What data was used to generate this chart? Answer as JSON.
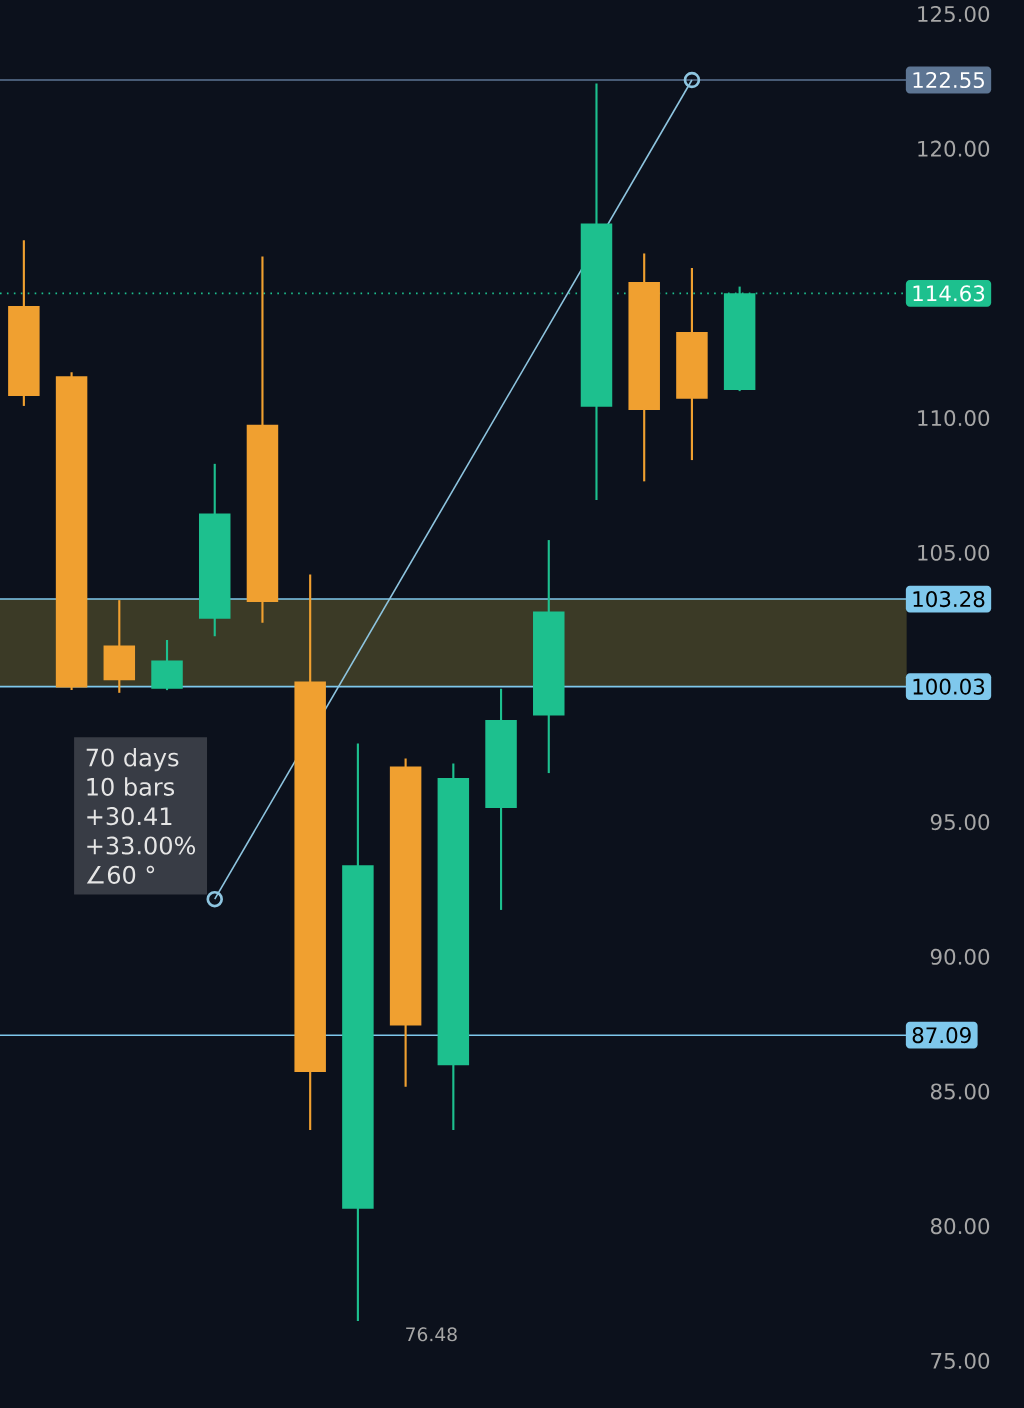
{
  "chart_data": {
    "type": "candlestick",
    "categories": [
      null,
      null,
      null,
      null,
      null,
      null,
      null,
      null,
      null,
      null,
      null,
      null,
      null,
      null,
      null,
      null,
      null,
      null,
      null
    ],
    "ohlc": [
      [
        114.16,
        116.6,
        110.45,
        110.82
      ],
      [
        111.55,
        111.7,
        99.9,
        100.0
      ],
      [
        101.56,
        103.24,
        99.8,
        100.27
      ],
      [
        99.95,
        101.76,
        99.9,
        101.0
      ],
      [
        102.55,
        108.3,
        101.9,
        106.46
      ],
      [
        109.75,
        116.0,
        102.4,
        103.17
      ],
      [
        100.22,
        104.19,
        83.57,
        85.72
      ],
      [
        80.65,
        97.92,
        76.48,
        93.4
      ],
      [
        97.06,
        97.36,
        85.18,
        87.45
      ],
      [
        85.97,
        97.18,
        83.57,
        96.64
      ],
      [
        95.52,
        99.95,
        91.74,
        98.79
      ],
      [
        98.96,
        105.47,
        96.82,
        102.82
      ],
      [
        110.42,
        122.42,
        106.96,
        117.22
      ],
      [
        115.05,
        116.11,
        107.65,
        110.3
      ],
      [
        113.19,
        115.57,
        108.44,
        110.72
      ],
      [
        111.04,
        114.88,
        111.0,
        114.63
      ],
      null,
      null,
      null
    ],
    "colors": [
      "#f0a030",
      "#f0a030",
      "#f0a030",
      "#1dc08e",
      "#1dc08e",
      "#f0a030",
      "#f0a030",
      "#1dc08e",
      "#f0a030",
      "#1dc08e",
      "#1dc08e",
      "#1dc08e",
      "#1dc08e",
      "#f0a030",
      "#f0a030",
      "#1dc08e",
      null,
      null,
      null
    ],
    "series": [
      {
        "type": "line",
        "values": [
          null,
          null,
          null,
          null,
          92.14,
          null,
          null,
          null,
          null,
          null,
          null,
          null,
          null,
          null,
          122.55,
          null,
          null,
          null,
          null
        ],
        "color": "#8ec5e0",
        "marker": "circle"
      }
    ],
    "ylim": [
      73.25,
      125.52
    ],
    "yticks": [
      {
        "value": 75,
        "label": "75.00"
      },
      {
        "value": 80,
        "label": "80.00"
      },
      {
        "value": 85,
        "label": "85.00"
      },
      {
        "value": 90,
        "label": "90.00"
      },
      {
        "value": 95,
        "label": "95.00"
      },
      {
        "value": 105,
        "label": "105.00"
      },
      {
        "value": 110,
        "label": "110.00"
      },
      {
        "value": 120,
        "label": "120.00"
      },
      {
        "value": 125,
        "label": "125.00"
      }
    ],
    "ref_lines": [
      {
        "axis": "y",
        "value": 122.55,
        "label": "122.55",
        "color": "#5d7593"
      },
      {
        "axis": "y",
        "value": 114.63,
        "label": "114.63",
        "color": "#1dc08e",
        "line_style": "dotted"
      },
      {
        "axis": "y",
        "value": 103.28,
        "label": "103.28",
        "color": "#7fc8ec"
      },
      {
        "axis": "y",
        "value": 100.03,
        "label": "100.03",
        "color": "#7fc8ec"
      },
      {
        "axis": "y",
        "value": 87.09,
        "label": "87.09",
        "color": "#7fc8ec"
      }
    ],
    "bands": [
      {
        "axis": "y",
        "from": 100.03,
        "to": 103.28,
        "color": "#3b3a26"
      }
    ],
    "annotations": [
      "70 days",
      "10 bars",
      "+30.41",
      "+33.00%",
      "∠60 °",
      "76.48"
    ],
    "tick_labels": "y"
  }
}
